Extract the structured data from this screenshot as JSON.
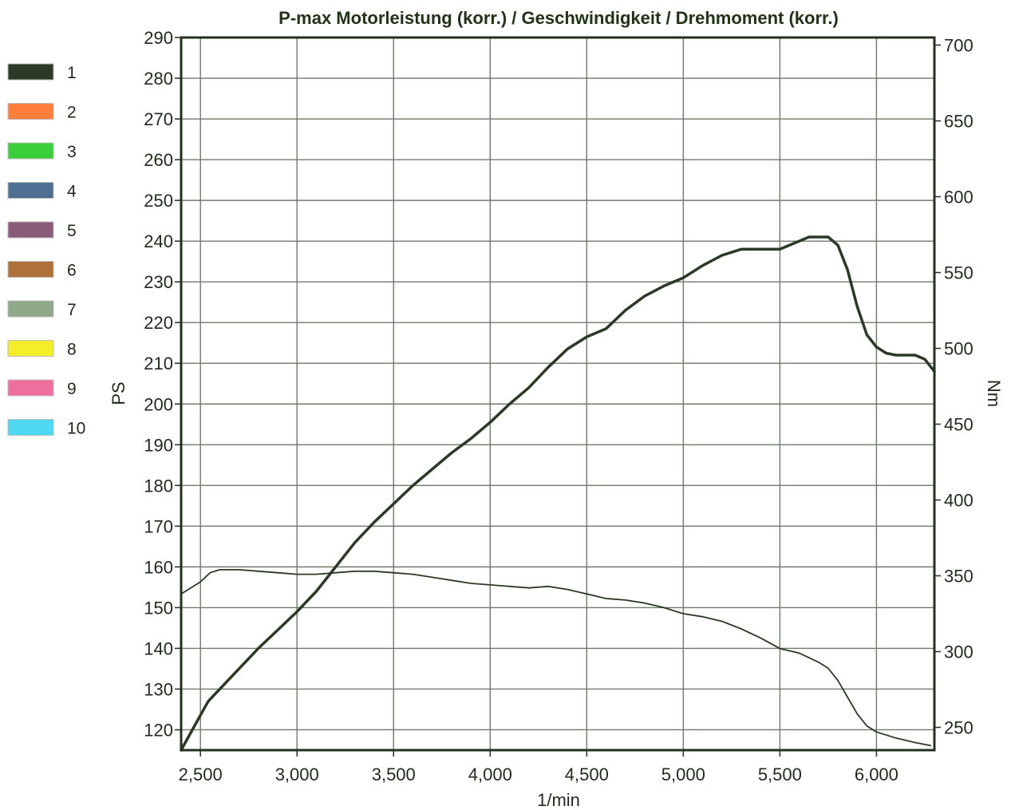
{
  "chart_data": {
    "type": "line",
    "title": "P-max Motorleistung (korr.) / Geschwindigkeit / Drehmoment (korr.)",
    "xlabel": "1/min",
    "ylabel_left": "PS",
    "ylabel_right": "Nm",
    "xlim": [
      2400,
      6300
    ],
    "ylim_left": [
      115,
      290
    ],
    "ylim_right": [
      235,
      705
    ],
    "grid": true,
    "legend_position": "left",
    "x_ticks": [
      {
        "value": 2500,
        "label": "2,500"
      },
      {
        "value": 3000,
        "label": "3,000"
      },
      {
        "value": 3500,
        "label": "3,500"
      },
      {
        "value": 4000,
        "label": "4,000"
      },
      {
        "value": 4500,
        "label": "4,500"
      },
      {
        "value": 5000,
        "label": "5,000"
      },
      {
        "value": 5500,
        "label": "5,500"
      },
      {
        "value": 6000,
        "label": "6,000"
      }
    ],
    "y_left_ticks": [
      {
        "value": 120,
        "label": "120"
      },
      {
        "value": 130,
        "label": "130"
      },
      {
        "value": 140,
        "label": "140"
      },
      {
        "value": 150,
        "label": "150"
      },
      {
        "value": 160,
        "label": "160"
      },
      {
        "value": 170,
        "label": "170"
      },
      {
        "value": 180,
        "label": "180"
      },
      {
        "value": 190,
        "label": "190"
      },
      {
        "value": 200,
        "label": "200"
      },
      {
        "value": 210,
        "label": "210"
      },
      {
        "value": 220,
        "label": "220"
      },
      {
        "value": 230,
        "label": "230"
      },
      {
        "value": 240,
        "label": "240"
      },
      {
        "value": 250,
        "label": "250"
      },
      {
        "value": 260,
        "label": "260"
      },
      {
        "value": 270,
        "label": "270"
      },
      {
        "value": 280,
        "label": "280"
      },
      {
        "value": 290,
        "label": "290"
      }
    ],
    "y_right_ticks": [
      {
        "value": 250,
        "label": "250"
      },
      {
        "value": 300,
        "label": "300"
      },
      {
        "value": 350,
        "label": "350"
      },
      {
        "value": 400,
        "label": "400"
      },
      {
        "value": 450,
        "label": "450"
      },
      {
        "value": 500,
        "label": "500"
      },
      {
        "value": 550,
        "label": "550"
      },
      {
        "value": 600,
        "label": "600"
      },
      {
        "value": 650,
        "label": "650"
      },
      {
        "value": 700,
        "label": "700"
      }
    ],
    "legend": [
      {
        "label": "1",
        "color": "#2b3a25"
      },
      {
        "label": "2",
        "color": "#ff7f3a"
      },
      {
        "label": "3",
        "color": "#3ccf3c"
      },
      {
        "label": "4",
        "color": "#4e6e92"
      },
      {
        "label": "5",
        "color": "#8a5a78"
      },
      {
        "label": "6",
        "color": "#b0703a"
      },
      {
        "label": "7",
        "color": "#8fa88a"
      },
      {
        "label": "8",
        "color": "#f4ee2a"
      },
      {
        "label": "9",
        "color": "#ee6f9e"
      },
      {
        "label": "10",
        "color": "#4fd8f2"
      }
    ],
    "series": [
      {
        "axis": "left",
        "color": "#2b3a25",
        "stroke": 3.5,
        "points": [
          [
            2400,
            115
          ],
          [
            2470,
            121
          ],
          [
            2540,
            127
          ],
          [
            2600,
            130
          ],
          [
            2700,
            135
          ],
          [
            2800,
            140
          ],
          [
            2900,
            144.5
          ],
          [
            3000,
            149
          ],
          [
            3100,
            154
          ],
          [
            3200,
            160
          ],
          [
            3300,
            166
          ],
          [
            3400,
            171
          ],
          [
            3500,
            175.5
          ],
          [
            3600,
            180
          ],
          [
            3700,
            184
          ],
          [
            3800,
            188
          ],
          [
            3900,
            191.5
          ],
          [
            4000,
            195.5
          ],
          [
            4100,
            200
          ],
          [
            4200,
            204
          ],
          [
            4300,
            209
          ],
          [
            4400,
            213.5
          ],
          [
            4500,
            216.5
          ],
          [
            4600,
            218.5
          ],
          [
            4700,
            223
          ],
          [
            4800,
            226.5
          ],
          [
            4900,
            229
          ],
          [
            5000,
            231
          ],
          [
            5100,
            234
          ],
          [
            5200,
            236.5
          ],
          [
            5300,
            238
          ],
          [
            5400,
            238
          ],
          [
            5500,
            238
          ],
          [
            5600,
            240
          ],
          [
            5650,
            241
          ],
          [
            5750,
            241
          ],
          [
            5800,
            239
          ],
          [
            5850,
            233
          ],
          [
            5900,
            224
          ],
          [
            5950,
            217
          ],
          [
            6000,
            214
          ],
          [
            6050,
            212.5
          ],
          [
            6100,
            212
          ],
          [
            6200,
            212
          ],
          [
            6250,
            211
          ],
          [
            6300,
            208
          ]
        ]
      },
      {
        "axis": "right",
        "color": "#2b3a25",
        "stroke": 1.8,
        "points": [
          [
            2400,
            338
          ],
          [
            2450,
            342
          ],
          [
            2500,
            346
          ],
          [
            2550,
            352
          ],
          [
            2600,
            354
          ],
          [
            2700,
            354
          ],
          [
            2800,
            353
          ],
          [
            2900,
            352
          ],
          [
            3000,
            351
          ],
          [
            3100,
            351
          ],
          [
            3200,
            352
          ],
          [
            3300,
            353
          ],
          [
            3400,
            353
          ],
          [
            3500,
            352
          ],
          [
            3600,
            351
          ],
          [
            3700,
            349
          ],
          [
            3800,
            347
          ],
          [
            3900,
            345
          ],
          [
            4000,
            344
          ],
          [
            4100,
            343
          ],
          [
            4200,
            342
          ],
          [
            4300,
            343
          ],
          [
            4400,
            341
          ],
          [
            4500,
            338
          ],
          [
            4600,
            335
          ],
          [
            4700,
            334
          ],
          [
            4800,
            332
          ],
          [
            4900,
            329
          ],
          [
            5000,
            325
          ],
          [
            5100,
            323
          ],
          [
            5200,
            320
          ],
          [
            5300,
            315
          ],
          [
            5400,
            309
          ],
          [
            5500,
            302
          ],
          [
            5600,
            299
          ],
          [
            5700,
            293
          ],
          [
            5750,
            289
          ],
          [
            5800,
            281
          ],
          [
            5850,
            270
          ],
          [
            5900,
            259
          ],
          [
            5950,
            251
          ],
          [
            6000,
            247
          ],
          [
            6100,
            243
          ],
          [
            6200,
            240
          ],
          [
            6280,
            238
          ]
        ]
      }
    ]
  }
}
